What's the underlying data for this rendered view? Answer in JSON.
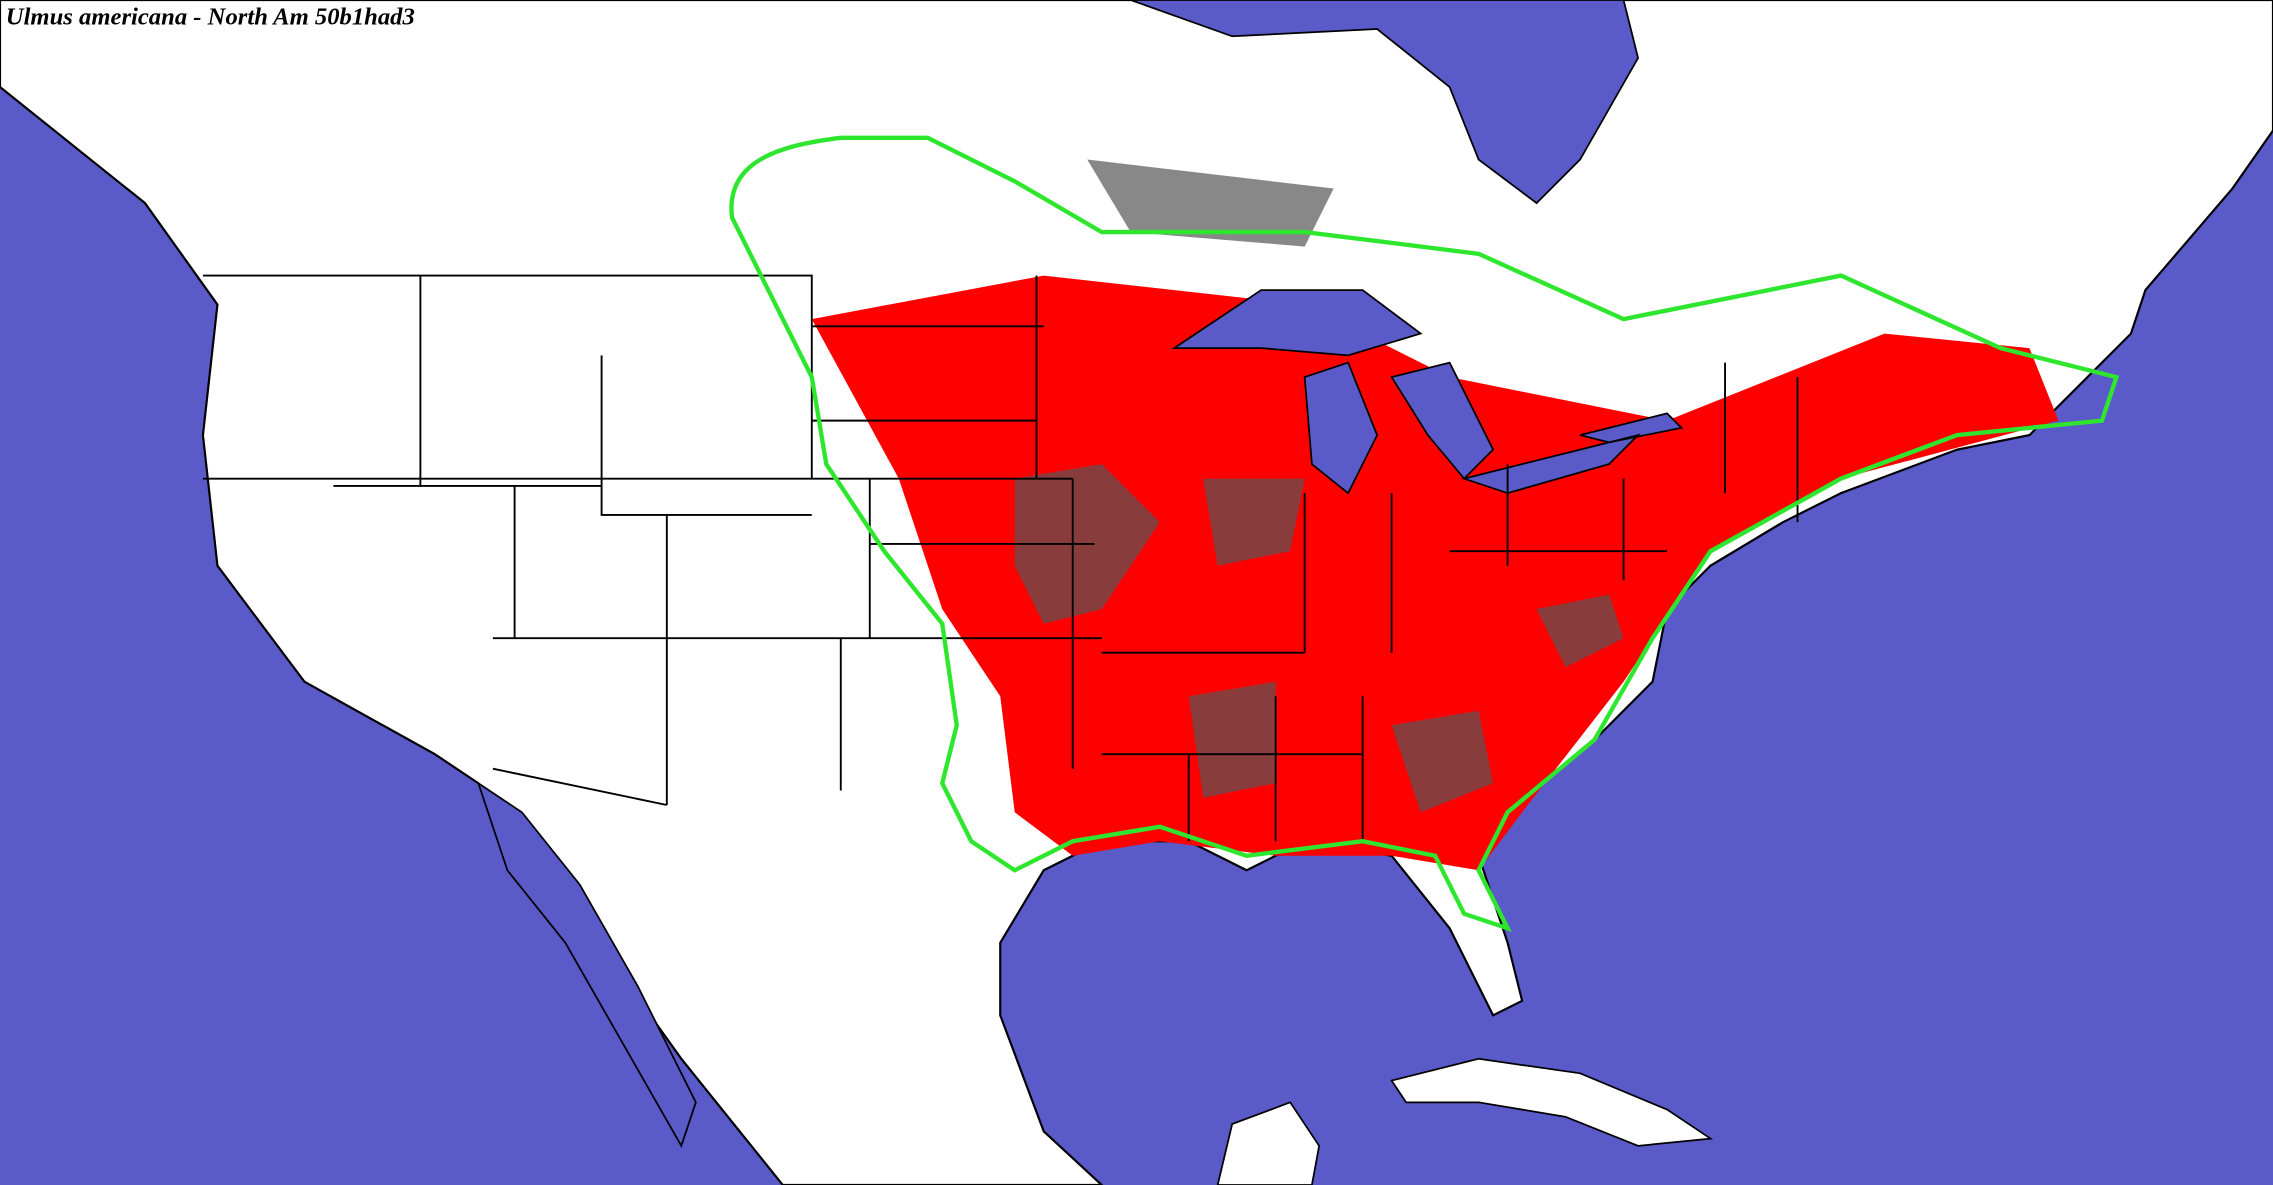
{
  "title": "Ulmus americana - North Am 50b1had3"
}
